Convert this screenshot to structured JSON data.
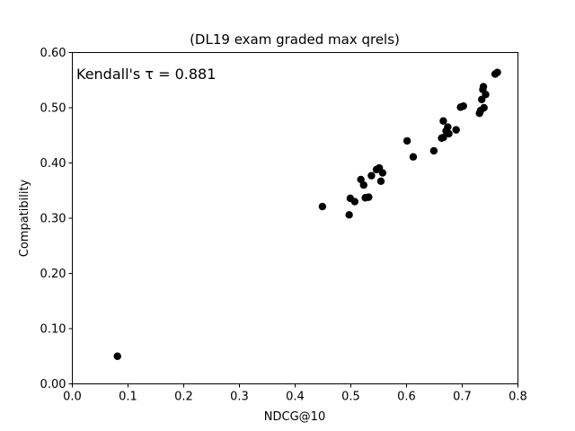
{
  "chart_data": {
    "type": "scatter",
    "title": "(DL19 exam graded max qrels)",
    "xlabel": "NDCG@10",
    "ylabel": "Compatibility",
    "xlim": [
      0.0,
      0.8
    ],
    "ylim": [
      0.0,
      0.6
    ],
    "xticks": [
      "0.0",
      "0.1",
      "0.2",
      "0.3",
      "0.4",
      "0.5",
      "0.6",
      "0.7",
      "0.8"
    ],
    "yticks": [
      "0.00",
      "0.10",
      "0.20",
      "0.30",
      "0.40",
      "0.50",
      "0.60"
    ],
    "grid": false,
    "annotation": "Kendall's τ = 0.881",
    "marker_color": "#000000",
    "points": [
      {
        "x": 0.081,
        "y": 0.05
      },
      {
        "x": 0.449,
        "y": 0.321
      },
      {
        "x": 0.497,
        "y": 0.306
      },
      {
        "x": 0.499,
        "y": 0.336
      },
      {
        "x": 0.507,
        "y": 0.33
      },
      {
        "x": 0.518,
        "y": 0.37
      },
      {
        "x": 0.523,
        "y": 0.36
      },
      {
        "x": 0.526,
        "y": 0.337
      },
      {
        "x": 0.532,
        "y": 0.338
      },
      {
        "x": 0.537,
        "y": 0.377
      },
      {
        "x": 0.546,
        "y": 0.388
      },
      {
        "x": 0.551,
        "y": 0.391
      },
      {
        "x": 0.554,
        "y": 0.367
      },
      {
        "x": 0.557,
        "y": 0.382
      },
      {
        "x": 0.601,
        "y": 0.44
      },
      {
        "x": 0.612,
        "y": 0.411
      },
      {
        "x": 0.649,
        "y": 0.422
      },
      {
        "x": 0.663,
        "y": 0.445
      },
      {
        "x": 0.666,
        "y": 0.446
      },
      {
        "x": 0.666,
        "y": 0.476
      },
      {
        "x": 0.671,
        "y": 0.458
      },
      {
        "x": 0.674,
        "y": 0.465
      },
      {
        "x": 0.676,
        "y": 0.453
      },
      {
        "x": 0.689,
        "y": 0.46
      },
      {
        "x": 0.697,
        "y": 0.501
      },
      {
        "x": 0.702,
        "y": 0.503
      },
      {
        "x": 0.731,
        "y": 0.49
      },
      {
        "x": 0.733,
        "y": 0.495
      },
      {
        "x": 0.735,
        "y": 0.515
      },
      {
        "x": 0.737,
        "y": 0.533
      },
      {
        "x": 0.738,
        "y": 0.538
      },
      {
        "x": 0.739,
        "y": 0.5
      },
      {
        "x": 0.742,
        "y": 0.524
      },
      {
        "x": 0.759,
        "y": 0.561
      },
      {
        "x": 0.763,
        "y": 0.564
      }
    ]
  }
}
